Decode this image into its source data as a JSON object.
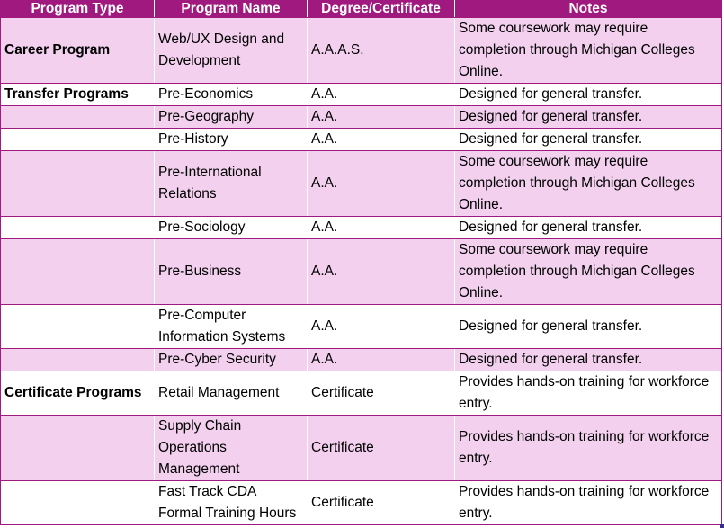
{
  "headers": [
    "Program Type",
    "Program Name",
    "Degree/Certificate",
    "Notes"
  ],
  "rows": [
    {
      "type": "Career Program",
      "name": "Web/UX Design and Development",
      "degree": "A.A.A.S.",
      "notes": "Some coursework may require completion through Michigan Colleges Online.",
      "shade": true,
      "lines": 3
    },
    {
      "type": "Transfer Programs",
      "name": "Pre-Economics",
      "degree": "A.A.",
      "notes": "Designed for general transfer.",
      "shade": false,
      "lines": 1
    },
    {
      "type": "",
      "name": "Pre-Geography",
      "degree": "A.A.",
      "notes": "Designed for general transfer.",
      "shade": true,
      "lines": 1
    },
    {
      "type": "",
      "name": "Pre-History",
      "degree": "A.A.",
      "notes": "Designed for general transfer.",
      "shade": false,
      "lines": 1
    },
    {
      "type": "",
      "name": "Pre-International Relations",
      "degree": "A.A.",
      "notes": "Some coursework may require completion through Michigan Colleges Online.",
      "shade": true,
      "lines": 3
    },
    {
      "type": "",
      "name": "Pre-Sociology",
      "degree": "A.A.",
      "notes": "Designed for general transfer.",
      "shade": false,
      "lines": 1
    },
    {
      "type": "",
      "name": "Pre-Business",
      "degree": "A.A.",
      "notes": "Some coursework may require completion through Michigan Colleges Online.",
      "shade": true,
      "lines": 3
    },
    {
      "type": "",
      "name": "Pre-Computer Information Systems",
      "degree": "A.A.",
      "notes": "Designed for general transfer.",
      "shade": false,
      "lines": 2
    },
    {
      "type": "",
      "name": "Pre-Cyber Security",
      "degree": "A.A.",
      "notes": "Designed for general transfer.",
      "shade": true,
      "lines": 1
    },
    {
      "type": "Certificate Programs",
      "name": "Retail Management",
      "degree": "Certificate",
      "notes": "Provides hands-on training for workforce entry.",
      "shade": false,
      "lines": 2
    },
    {
      "type": "",
      "name": "Supply Chain Operations Management",
      "degree": "Certificate",
      "notes": "Provides hands-on training for workforce entry.",
      "shade": true,
      "lines": 3
    },
    {
      "type": "",
      "name": "Fast Track CDA Formal Training Hours",
      "degree": "Certificate",
      "notes": "Provides hands-on training for workforce entry.",
      "shade": false,
      "lines": 2
    }
  ],
  "colors": {
    "header_bg": "#a0197f",
    "header_text": "#ffffff",
    "band": "#f2d0ee",
    "plain": "#ffffff"
  }
}
